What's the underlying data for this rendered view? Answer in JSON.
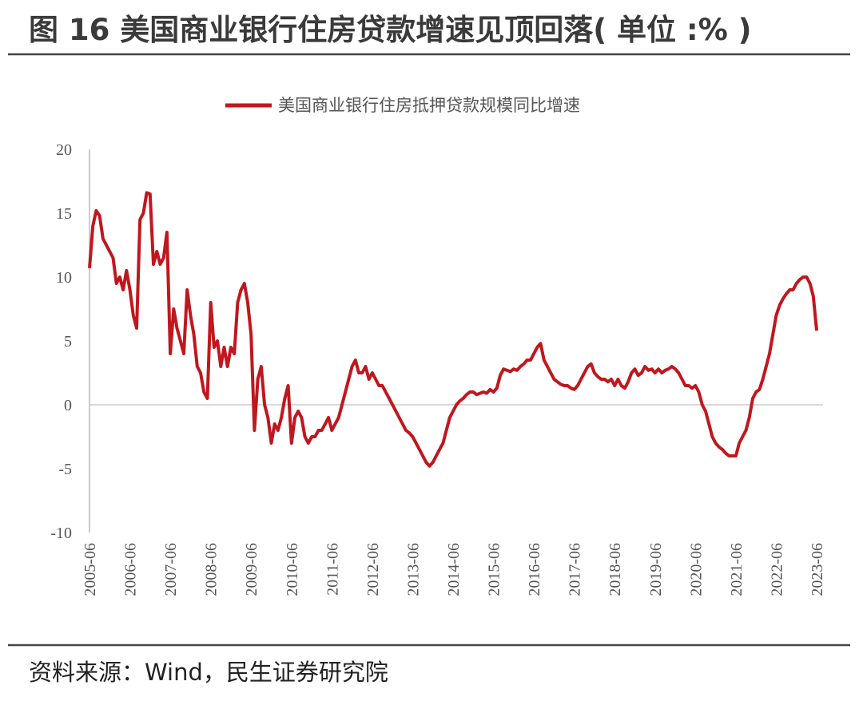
{
  "header": {
    "title": "图 16  美国商业银行住房贷款增速见顶回落( 单位 :% )"
  },
  "chart_data": {
    "type": "line",
    "x": [
      "2005-06",
      "2005-07",
      "2005-08",
      "2005-09",
      "2005-10",
      "2005-11",
      "2005-12",
      "2006-01",
      "2006-02",
      "2006-03",
      "2006-04",
      "2006-05",
      "2006-06",
      "2006-07",
      "2006-08",
      "2006-09",
      "2006-10",
      "2006-11",
      "2006-12",
      "2007-01",
      "2007-02",
      "2007-03",
      "2007-04",
      "2007-05",
      "2007-06",
      "2007-07",
      "2007-08",
      "2007-09",
      "2007-10",
      "2007-11",
      "2007-12",
      "2008-01",
      "2008-02",
      "2008-03",
      "2008-04",
      "2008-05",
      "2008-06",
      "2008-07",
      "2008-08",
      "2008-09",
      "2008-10",
      "2008-11",
      "2008-12",
      "2009-01",
      "2009-02",
      "2009-03",
      "2009-04",
      "2009-05",
      "2009-06",
      "2009-07",
      "2009-08",
      "2009-09",
      "2009-10",
      "2009-11",
      "2009-12",
      "2010-01",
      "2010-02",
      "2010-03",
      "2010-04",
      "2010-05",
      "2010-06",
      "2010-07",
      "2010-08",
      "2010-09",
      "2010-10",
      "2010-11",
      "2010-12",
      "2011-01",
      "2011-02",
      "2011-03",
      "2011-04",
      "2011-05",
      "2011-06",
      "2011-07",
      "2011-08",
      "2011-09",
      "2011-10",
      "2011-11",
      "2011-12",
      "2012-01",
      "2012-02",
      "2012-03",
      "2012-04",
      "2012-05",
      "2012-06",
      "2012-07",
      "2012-08",
      "2012-09",
      "2012-10",
      "2012-11",
      "2012-12",
      "2013-01",
      "2013-02",
      "2013-03",
      "2013-04",
      "2013-05",
      "2013-06",
      "2013-07",
      "2013-08",
      "2013-09",
      "2013-10",
      "2013-11",
      "2013-12",
      "2014-01",
      "2014-02",
      "2014-03",
      "2014-04",
      "2014-05",
      "2014-06",
      "2014-07",
      "2014-08",
      "2014-09",
      "2014-10",
      "2014-11",
      "2014-12",
      "2015-01",
      "2015-02",
      "2015-03",
      "2015-04",
      "2015-05",
      "2015-06",
      "2015-07",
      "2015-08",
      "2015-09",
      "2015-10",
      "2015-11",
      "2015-12",
      "2016-01",
      "2016-02",
      "2016-03",
      "2016-04",
      "2016-05",
      "2016-06",
      "2016-07",
      "2016-08",
      "2016-09",
      "2016-10",
      "2016-11",
      "2016-12",
      "2017-01",
      "2017-02",
      "2017-03",
      "2017-04",
      "2017-05",
      "2017-06",
      "2017-07",
      "2017-08",
      "2017-09",
      "2017-10",
      "2017-11",
      "2017-12",
      "2018-01",
      "2018-02",
      "2018-03",
      "2018-04",
      "2018-05",
      "2018-06",
      "2018-07",
      "2018-08",
      "2018-09",
      "2018-10",
      "2018-11",
      "2018-12",
      "2019-01",
      "2019-02",
      "2019-03",
      "2019-04",
      "2019-05",
      "2019-06",
      "2019-07",
      "2019-08",
      "2019-09",
      "2019-10",
      "2019-11",
      "2019-12",
      "2020-01",
      "2020-02",
      "2020-03",
      "2020-04",
      "2020-05",
      "2020-06",
      "2020-07",
      "2020-08",
      "2020-09",
      "2020-10",
      "2020-11",
      "2020-12",
      "2021-01",
      "2021-02",
      "2021-03",
      "2021-04",
      "2021-05",
      "2021-06",
      "2021-07",
      "2021-08",
      "2021-09",
      "2021-10",
      "2021-11",
      "2021-12",
      "2022-01",
      "2022-02",
      "2022-03",
      "2022-04",
      "2022-05",
      "2022-06",
      "2022-07",
      "2022-08",
      "2022-09",
      "2022-10",
      "2022-11",
      "2022-12",
      "2023-01",
      "2023-02",
      "2023-03",
      "2023-04",
      "2023-05",
      "2023-06"
    ],
    "series": [
      {
        "name": "美国商业银行住房抵押贷款规模同比增速",
        "color": "#c0171e",
        "values": [
          10.7,
          14,
          15.2,
          14.8,
          13,
          12.5,
          12,
          11.5,
          9.5,
          10,
          9,
          10.5,
          9,
          7,
          6,
          14.5,
          15,
          16.6,
          16.5,
          11,
          12,
          11,
          11.5,
          13.5,
          4,
          7.5,
          6,
          5,
          4,
          9,
          7,
          5.5,
          3,
          2.5,
          1,
          0.5,
          8,
          4.5,
          5,
          3,
          4.5,
          3,
          4.5,
          4,
          8,
          9,
          9.5,
          8,
          5.5,
          -2,
          2,
          3,
          0,
          -1,
          -3,
          -1.5,
          -2,
          -1,
          0.5,
          1.5,
          -3,
          -1,
          -0.5,
          -1,
          -2.5,
          -3,
          -2.5,
          -2.5,
          -2,
          -2,
          -1.5,
          -1,
          -2,
          -1.5,
          -1,
          0,
          1,
          2,
          3,
          3.5,
          2.5,
          2.5,
          3,
          2,
          2.5,
          2,
          1.5,
          1.5,
          1,
          0.5,
          0,
          -0.5,
          -1,
          -1.5,
          -2,
          -2.2,
          -2.5,
          -3,
          -3.5,
          -4,
          -4.5,
          -4.8,
          -4.5,
          -4,
          -3.5,
          -3,
          -2,
          -1,
          -0.5,
          0,
          0.3,
          0.5,
          0.8,
          1,
          1,
          0.8,
          0.9,
          1,
          0.9,
          1.2,
          1,
          1.3,
          2.3,
          2.8,
          2.7,
          2.6,
          2.8,
          2.7,
          3,
          3.2,
          3.5,
          3.5,
          4,
          4.5,
          4.8,
          3.5,
          3,
          2.5,
          2,
          1.8,
          1.6,
          1.5,
          1.5,
          1.3,
          1.2,
          1.5,
          2,
          2.5,
          3,
          3.2,
          2.5,
          2.2,
          2,
          2,
          1.8,
          2,
          1.5,
          2,
          1.5,
          1.3,
          1.8,
          2.5,
          2.8,
          2.3,
          2.5,
          3,
          2.7,
          2.8,
          2.5,
          2.8,
          2.5,
          2.7,
          2.8,
          3,
          2.8,
          2.5,
          2,
          1.5,
          1.5,
          1.3,
          1.5,
          1,
          0,
          -0.5,
          -1.5,
          -2.5,
          -3,
          -3.3,
          -3.5,
          -3.8,
          -4,
          -4,
          -4,
          -3,
          -2.5,
          -2,
          -1,
          0.5,
          1,
          1.2,
          2,
          3,
          4,
          5.5,
          7,
          7.8,
          8.3,
          8.7,
          9,
          9,
          9.5,
          9.8,
          10,
          10,
          9.5,
          8.5,
          5.8
        ]
      }
    ],
    "ylim": [
      -10,
      20
    ],
    "yticks": [
      -10,
      -5,
      0,
      5,
      10,
      15,
      20
    ],
    "xlim": [
      "2005-06",
      "2023-06"
    ],
    "xticks": [
      "2005-06",
      "2006-06",
      "2007-06",
      "2008-06",
      "2009-06",
      "2010-06",
      "2011-06",
      "2012-06",
      "2013-06",
      "2014-06",
      "2015-06",
      "2016-06",
      "2017-06",
      "2018-06",
      "2019-06",
      "2020-06",
      "2021-06",
      "2022-06",
      "2023-06"
    ],
    "legend": "top"
  },
  "footer": {
    "source": "资料来源：Wind，民生证券研究院"
  }
}
